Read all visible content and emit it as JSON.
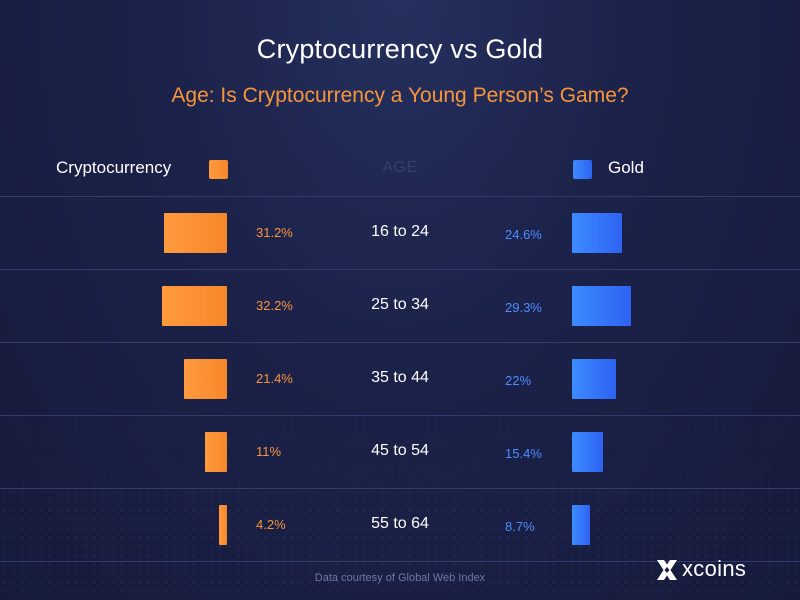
{
  "chart_data": {
    "type": "bar",
    "title": "Cryptocurrency vs Gold",
    "subtitle": "Age: Is Cryptocurrency a Young Person’s Game?",
    "category_header": "AGE",
    "categories": [
      "16 to 24",
      "25 to 34",
      "35 to 44",
      "45 to 54",
      "55 to 64"
    ],
    "series": [
      {
        "name": "Cryptocurrency",
        "values": [
          31.2,
          32.2,
          21.4,
          11,
          4.2
        ],
        "labels": [
          "31.2%",
          "32.2%",
          "21.4%",
          "11%",
          "4.2%"
        ],
        "color": "#f7953b"
      },
      {
        "name": "Gold",
        "values": [
          24.6,
          29.3,
          22,
          15.4,
          8.7
        ],
        "labels": [
          "24.6%",
          "29.3%",
          "22%",
          "15.4%",
          "8.7%"
        ],
        "color": "#3a80ff"
      }
    ],
    "ylim": [
      0,
      32.2
    ],
    "grid": false,
    "legend_position": "top"
  },
  "footnote": "Data courtesy of Global Web Index",
  "logo": {
    "text": "xcoins",
    "icon": "xcoins-x-icon"
  }
}
